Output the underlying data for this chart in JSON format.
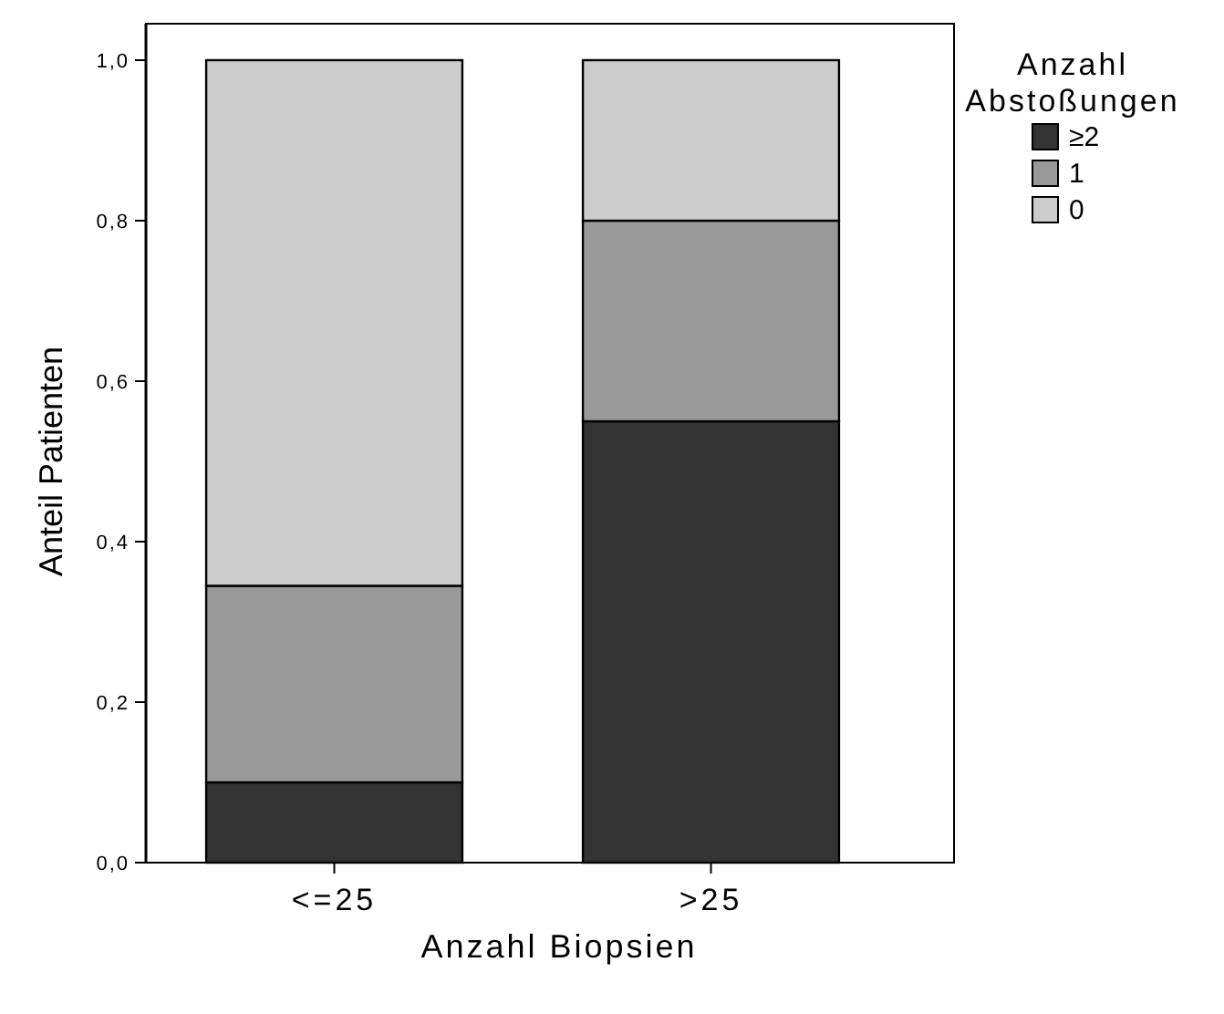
{
  "chart_data": {
    "type": "bar",
    "stacked": true,
    "categories": [
      "<=25",
      ">25"
    ],
    "xlabel": "Anzahl Biopsien",
    "ylabel": "Anteil Patienten",
    "legend_title": "Anzahl Abstoßungen",
    "legend": "top right",
    "ylim": [
      0,
      1
    ],
    "yticks": [
      {
        "value": 0,
        "label": "0,0"
      },
      {
        "value": 0.2,
        "label": "0,2"
      },
      {
        "value": 0.4,
        "label": "0,4"
      },
      {
        "value": 0.6,
        "label": "0,6"
      },
      {
        "value": 0.8,
        "label": "0,8"
      },
      {
        "value": 1,
        "label": "1,0"
      }
    ],
    "series": [
      {
        "name": "≥2",
        "color": "#333333",
        "values": [
          0.1,
          0.55
        ]
      },
      {
        "name": "1",
        "color": "#999999",
        "values": [
          0.245,
          0.25
        ]
      },
      {
        "name": "0",
        "color": "#cccccc",
        "values": [
          0.655,
          0.2
        ]
      }
    ]
  }
}
